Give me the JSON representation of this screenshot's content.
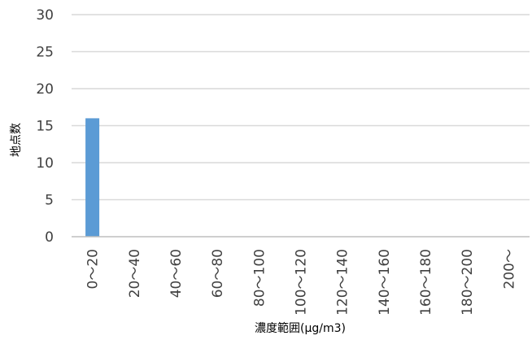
{
  "chart_data": {
    "type": "bar",
    "title": "",
    "xlabel": "濃度範囲(μg/m3)",
    "ylabel": "地点数",
    "categories": [
      "0～20",
      "20～40",
      "40～60",
      "60～80",
      "80～100",
      "100～120",
      "120～140",
      "140～160",
      "160～180",
      "180～200",
      "200～"
    ],
    "series": [
      {
        "values": [
          16,
          0,
          0,
          0,
          0,
          0,
          0,
          0,
          0,
          0,
          0
        ]
      }
    ],
    "ylim": [
      0,
      30
    ],
    "yticks": [
      0,
      5,
      10,
      15,
      20,
      25,
      30
    ],
    "grid": true,
    "legend": "none",
    "colors": {
      "bar": "#5B9BD5",
      "grid": "#D9D9D9",
      "axis": "#BFBFBF"
    }
  }
}
